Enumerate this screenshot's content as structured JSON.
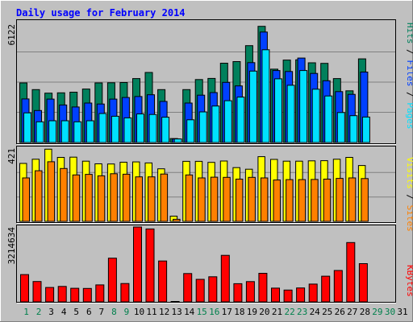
{
  "title": "Daily usage for February 2014",
  "colors": {
    "background": "#C0C0C0",
    "plot": "#C0C0C0",
    "hits": "#00805C",
    "files": "#0040FF",
    "pages": "#00E0FF",
    "visits": "#FFFF00",
    "sites": "#FF8000",
    "kbytes": "#FF0000",
    "title": "#0000FF",
    "weekday": "#008040",
    "weekend": "#00804C",
    "day_label": "#008040"
  },
  "y_axes": {
    "top_max": "6122",
    "middle_max": "421",
    "bottom_max": "3214634"
  },
  "legend": {
    "top": {
      "pages": "Pages",
      "files": "Files",
      "hits": "Hits",
      "sep": " / "
    },
    "middle": {
      "sites": "Sites",
      "visits": "Visits",
      "sep": " / "
    },
    "bottom": {
      "kbytes": "KBytes"
    }
  },
  "chart_data": [
    {
      "type": "bar",
      "title": "Daily usage for February 2014",
      "categories": [
        "1",
        "2",
        "3",
        "4",
        "5",
        "6",
        "7",
        "8",
        "9",
        "10",
        "11",
        "12",
        "13",
        "14",
        "15",
        "16",
        "17",
        "18",
        "19",
        "20",
        "21",
        "22",
        "23",
        "24",
        "25",
        "26",
        "27",
        "28",
        "29",
        "30",
        "31"
      ],
      "ylim": [
        0,
        6122
      ],
      "series": [
        {
          "name": "Hits",
          "values": [
            3020,
            2680,
            2500,
            2520,
            2550,
            2710,
            3020,
            3030,
            3040,
            3240,
            3550,
            2680,
            200,
            2680,
            3190,
            3250,
            4020,
            4100,
            4910,
            5890,
            3720,
            4180,
            4190,
            4040,
            4010,
            3240,
            2620,
            4240,
            null,
            null,
            null
          ]
        },
        {
          "name": "Files",
          "values": [
            2210,
            1620,
            2200,
            1900,
            1800,
            2000,
            1950,
            2200,
            2280,
            2330,
            2420,
            2080,
            180,
            2000,
            2400,
            2530,
            3050,
            2870,
            4050,
            5600,
            3650,
            3600,
            4280,
            3500,
            3130,
            2580,
            2440,
            3570,
            null,
            null,
            null
          ]
        },
        {
          "name": "Pages",
          "values": [
            1500,
            1050,
            1100,
            1100,
            1050,
            1100,
            1470,
            1330,
            1250,
            1450,
            1420,
            1280,
            180,
            1150,
            1550,
            1850,
            2120,
            2300,
            3620,
            4700,
            3230,
            2900,
            3650,
            2700,
            2360,
            1520,
            1360,
            1290,
            null,
            null,
            null
          ]
        }
      ]
    },
    {
      "type": "bar",
      "categories": [
        "1",
        "2",
        "3",
        "4",
        "5",
        "6",
        "7",
        "8",
        "9",
        "10",
        "11",
        "12",
        "13",
        "14",
        "15",
        "16",
        "17",
        "18",
        "19",
        "20",
        "21",
        "22",
        "23",
        "24",
        "25",
        "26",
        "27",
        "28",
        "29",
        "30",
        "31"
      ],
      "ylim": [
        0,
        421
      ],
      "series": [
        {
          "name": "Visits",
          "values": [
            333,
            357,
            415,
            368,
            369,
            346,
            331,
            330,
            340,
            342,
            336,
            302,
            30,
            345,
            345,
            339,
            347,
            309,
            300,
            372,
            356,
            346,
            346,
            348,
            349,
            357,
            368,
            321,
            null,
            null,
            null
          ]
        },
        {
          "name": "Sites",
          "values": [
            250,
            291,
            343,
            304,
            267,
            270,
            262,
            274,
            271,
            256,
            256,
            272,
            12,
            267,
            250,
            254,
            253,
            243,
            253,
            250,
            238,
            240,
            240,
            241,
            243,
            247,
            250,
            246,
            null,
            null,
            null
          ]
        }
      ]
    },
    {
      "type": "bar",
      "categories": [
        "1",
        "2",
        "3",
        "4",
        "5",
        "6",
        "7",
        "8",
        "9",
        "10",
        "11",
        "12",
        "13",
        "14",
        "15",
        "16",
        "17",
        "18",
        "19",
        "20",
        "21",
        "22",
        "23",
        "24",
        "25",
        "26",
        "27",
        "28",
        "29",
        "30",
        "31"
      ],
      "ylim": [
        0,
        3214634
      ],
      "series": [
        {
          "name": "KBytes",
          "values": [
            1172000,
            876000,
            619000,
            665000,
            584000,
            576000,
            729000,
            1877000,
            788000,
            3214634,
            3131000,
            1755000,
            18000,
            1215000,
            967000,
            1080000,
            1997000,
            781000,
            872000,
            1227000,
            590000,
            507000,
            598000,
            765000,
            1102000,
            1349000,
            2548000,
            1642000,
            null,
            null,
            null
          ]
        }
      ]
    }
  ]
}
